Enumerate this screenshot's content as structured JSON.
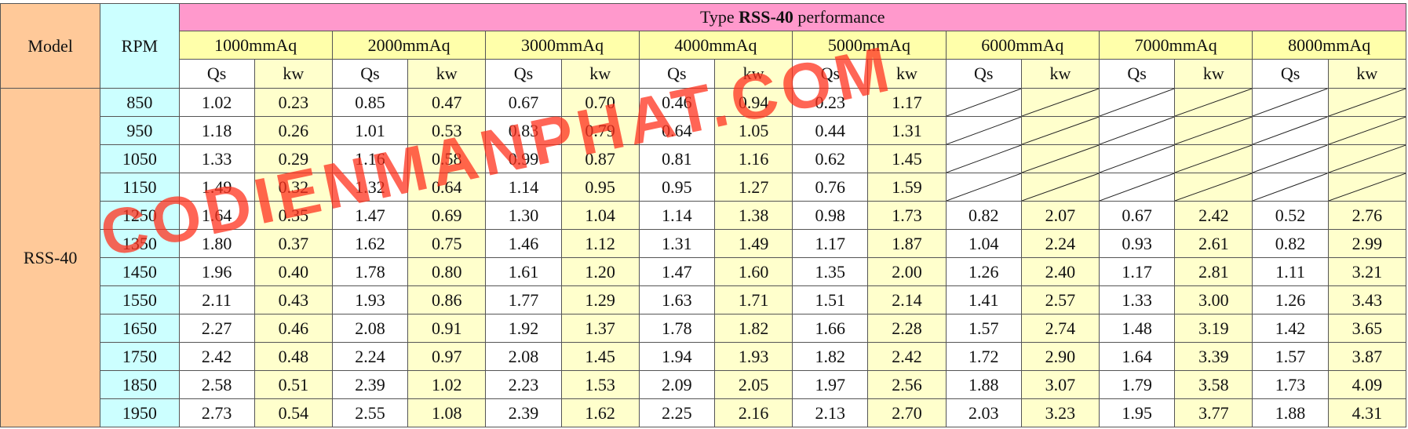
{
  "table": {
    "title_prefix": "Type ",
    "title_model": "RSS-40",
    "title_suffix": " performance",
    "model_header": "Model",
    "rpm_header": "RPM",
    "model_value": "RSS-40",
    "pressures": [
      "1000mmAq",
      "2000mmAq",
      "3000mmAq",
      "4000mmAq",
      "5000mmAq",
      "6000mmAq",
      "7000mmAq",
      "8000mmAq"
    ],
    "qs_label": "Qs",
    "kw_label": "kw",
    "rows": [
      {
        "rpm": "850",
        "values": [
          "1.02",
          "0.23",
          "0.85",
          "0.47",
          "0.67",
          "0.70",
          "0.46",
          "0.94",
          "0.23",
          "1.17",
          "",
          "",
          "",
          "",
          "",
          ""
        ]
      },
      {
        "rpm": "950",
        "values": [
          "1.18",
          "0.26",
          "1.01",
          "0.53",
          "0.83",
          "0.79",
          "0.64",
          "1.05",
          "0.44",
          "1.31",
          "",
          "",
          "",
          "",
          "",
          ""
        ]
      },
      {
        "rpm": "1050",
        "values": [
          "1.33",
          "0.29",
          "1.16",
          "0.58",
          "0.99",
          "0.87",
          "0.81",
          "1.16",
          "0.62",
          "1.45",
          "",
          "",
          "",
          "",
          "",
          ""
        ]
      },
      {
        "rpm": "1150",
        "values": [
          "1.49",
          "0.32",
          "1.32",
          "0.64",
          "1.14",
          "0.95",
          "0.95",
          "1.27",
          "0.76",
          "1.59",
          "",
          "",
          "",
          "",
          "",
          ""
        ]
      },
      {
        "rpm": "1250",
        "values": [
          "1.64",
          "0.35",
          "1.47",
          "0.69",
          "1.30",
          "1.04",
          "1.14",
          "1.38",
          "0.98",
          "1.73",
          "0.82",
          "2.07",
          "0.67",
          "2.42",
          "0.52",
          "2.76"
        ]
      },
      {
        "rpm": "1350",
        "values": [
          "1.80",
          "0.37",
          "1.62",
          "0.75",
          "1.46",
          "1.12",
          "1.31",
          "1.49",
          "1.17",
          "1.87",
          "1.04",
          "2.24",
          "0.93",
          "2.61",
          "0.82",
          "2.99"
        ]
      },
      {
        "rpm": "1450",
        "values": [
          "1.96",
          "0.40",
          "1.78",
          "0.80",
          "1.61",
          "1.20",
          "1.47",
          "1.60",
          "1.35",
          "2.00",
          "1.26",
          "2.40",
          "1.17",
          "2.81",
          "1.11",
          "3.21"
        ]
      },
      {
        "rpm": "1550",
        "values": [
          "2.11",
          "0.43",
          "1.93",
          "0.86",
          "1.77",
          "1.29",
          "1.63",
          "1.71",
          "1.51",
          "2.14",
          "1.41",
          "2.57",
          "1.33",
          "3.00",
          "1.26",
          "3.43"
        ]
      },
      {
        "rpm": "1650",
        "values": [
          "2.27",
          "0.46",
          "2.08",
          "0.91",
          "1.92",
          "1.37",
          "1.78",
          "1.82",
          "1.66",
          "2.28",
          "1.57",
          "2.74",
          "1.48",
          "3.19",
          "1.42",
          "3.65"
        ]
      },
      {
        "rpm": "1750",
        "values": [
          "2.42",
          "0.48",
          "2.24",
          "0.97",
          "2.08",
          "1.45",
          "1.94",
          "1.93",
          "1.82",
          "2.42",
          "1.72",
          "2.90",
          "1.64",
          "3.39",
          "1.57",
          "3.87"
        ]
      },
      {
        "rpm": "1850",
        "values": [
          "2.58",
          "0.51",
          "2.39",
          "1.02",
          "2.23",
          "1.53",
          "2.09",
          "2.05",
          "1.97",
          "2.56",
          "1.88",
          "3.07",
          "1.79",
          "3.58",
          "1.73",
          "4.09"
        ]
      },
      {
        "rpm": "1950",
        "values": [
          "2.73",
          "0.54",
          "2.55",
          "1.08",
          "2.39",
          "1.62",
          "2.25",
          "2.16",
          "2.13",
          "2.70",
          "2.03",
          "3.23",
          "1.95",
          "3.77",
          "1.88",
          "4.31"
        ]
      }
    ]
  },
  "watermark": {
    "text": "CODIENMANPHAT.COM",
    "color": "#ff321e"
  },
  "colors": {
    "model_bg": "#ffc999",
    "rpm_bg": "#ccffff",
    "title_bg": "#ff99cc",
    "pressure_bg": "#ffffaa",
    "qs_bg": "#ffffff",
    "kw_bg": "#ffffcc"
  }
}
